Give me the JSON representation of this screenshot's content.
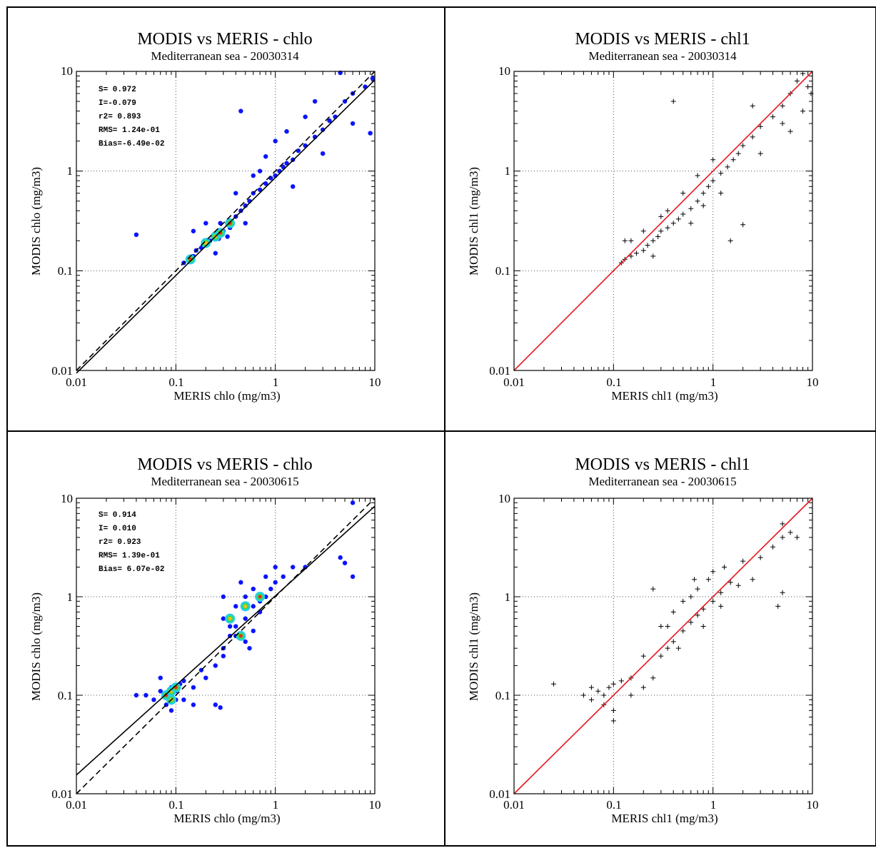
{
  "chart_data": [
    {
      "type": "scatter",
      "style": "density",
      "title": "MODIS vs MERIS - chlo",
      "subtitle": "Mediterranean sea - 20030314",
      "xlabel": "MERIS chlo (mg/m3)",
      "ylabel": "MODIS chlo (mg/m3)",
      "xscale": "log",
      "yscale": "log",
      "xlim": [
        0.01,
        10
      ],
      "ylim": [
        0.01,
        10
      ],
      "xticks": [
        "0.01",
        "0.1",
        "1",
        "10"
      ],
      "yticks": [
        "0.01",
        "0.1",
        "1",
        "10"
      ],
      "grid": true,
      "stats": [
        "S= 0.972",
        "I=-0.079",
        "r2= 0.893",
        "RMS= 1.24e-01",
        "Bias=-6.49e-02"
      ],
      "lines": [
        {
          "kind": "one-to-one",
          "style": "dashed",
          "color": "#000000",
          "x": [
            0.01,
            10
          ],
          "y": [
            0.01,
            10
          ]
        },
        {
          "kind": "regression",
          "style": "solid",
          "color": "#000000",
          "x": [
            0.01,
            10
          ],
          "y": [
            0.0094,
            8.2
          ]
        }
      ],
      "points": [
        [
          0.04,
          0.23
        ],
        [
          0.12,
          0.12
        ],
        [
          0.14,
          0.13
        ],
        [
          0.15,
          0.14
        ],
        [
          0.16,
          0.16
        ],
        [
          0.18,
          0.17
        ],
        [
          0.2,
          0.18
        ],
        [
          0.22,
          0.2
        ],
        [
          0.25,
          0.22
        ],
        [
          0.27,
          0.21
        ],
        [
          0.3,
          0.25
        ],
        [
          0.28,
          0.3
        ],
        [
          0.33,
          0.3
        ],
        [
          0.35,
          0.27
        ],
        [
          0.4,
          0.35
        ],
        [
          0.45,
          0.4
        ],
        [
          0.5,
          0.45
        ],
        [
          0.55,
          0.5
        ],
        [
          0.6,
          0.6
        ],
        [
          0.7,
          0.65
        ],
        [
          0.8,
          0.75
        ],
        [
          0.9,
          0.85
        ],
        [
          1.0,
          0.9
        ],
        [
          1.1,
          1.0
        ],
        [
          1.2,
          1.1
        ],
        [
          1.3,
          1.2
        ],
        [
          1.5,
          1.3
        ],
        [
          1.7,
          1.6
        ],
        [
          2.0,
          1.8
        ],
        [
          2.5,
          2.2
        ],
        [
          3.0,
          2.6
        ],
        [
          3.5,
          3.2
        ],
        [
          4.0,
          3.5
        ],
        [
          5.0,
          5.0
        ],
        [
          6.0,
          6.0
        ],
        [
          8.0,
          7.0
        ],
        [
          9.5,
          8.5
        ],
        [
          4.5,
          10.0
        ],
        [
          0.2,
          0.3
        ],
        [
          0.25,
          0.15
        ],
        [
          0.4,
          0.6
        ],
        [
          0.5,
          0.3
        ],
        [
          0.7,
          1.0
        ],
        [
          1.0,
          2.0
        ],
        [
          0.45,
          4.0
        ],
        [
          1.5,
          0.7
        ],
        [
          2.0,
          3.5
        ],
        [
          3.0,
          1.5
        ],
        [
          0.15,
          0.25
        ],
        [
          0.6,
          0.9
        ],
        [
          1.3,
          2.5
        ],
        [
          0.33,
          0.22
        ],
        [
          6.0,
          3.0
        ],
        [
          9.0,
          2.4
        ],
        [
          2.5,
          5.0
        ],
        [
          0.8,
          1.4
        ]
      ],
      "hotspots": [
        [
          0.14,
          0.13
        ],
        [
          0.25,
          0.22
        ],
        [
          0.28,
          0.24
        ],
        [
          0.2,
          0.19
        ],
        [
          0.35,
          0.3
        ]
      ]
    },
    {
      "type": "scatter",
      "style": "cross",
      "title": "MODIS vs MERIS - chl1",
      "subtitle": "Mediterranean sea - 20030314",
      "xlabel": "MERIS chl1 (mg/m3)",
      "ylabel": "MODIS chl1 (mg/m3)",
      "xscale": "log",
      "yscale": "log",
      "xlim": [
        0.01,
        10
      ],
      "ylim": [
        0.01,
        10
      ],
      "xticks": [
        "0.01",
        "0.1",
        "1",
        "10"
      ],
      "yticks": [
        "0.01",
        "0.1",
        "1",
        "10"
      ],
      "grid": true,
      "stats": [],
      "lines": [
        {
          "kind": "one-to-one",
          "style": "solid",
          "color": "#e8141c",
          "x": [
            0.01,
            10
          ],
          "y": [
            0.01,
            10
          ]
        }
      ],
      "points": [
        [
          0.12,
          0.12
        ],
        [
          0.13,
          0.13
        ],
        [
          0.15,
          0.14
        ],
        [
          0.17,
          0.15
        ],
        [
          0.2,
          0.16
        ],
        [
          0.22,
          0.18
        ],
        [
          0.25,
          0.2
        ],
        [
          0.28,
          0.22
        ],
        [
          0.3,
          0.25
        ],
        [
          0.35,
          0.27
        ],
        [
          0.4,
          0.3
        ],
        [
          0.45,
          0.33
        ],
        [
          0.5,
          0.37
        ],
        [
          0.6,
          0.42
        ],
        [
          0.7,
          0.5
        ],
        [
          0.8,
          0.6
        ],
        [
          0.9,
          0.7
        ],
        [
          1.0,
          0.8
        ],
        [
          1.2,
          0.95
        ],
        [
          1.4,
          1.1
        ],
        [
          1.6,
          1.3
        ],
        [
          1.8,
          1.5
        ],
        [
          2.0,
          1.8
        ],
        [
          2.5,
          2.2
        ],
        [
          3.0,
          2.8
        ],
        [
          4.0,
          3.5
        ],
        [
          5.0,
          4.5
        ],
        [
          6.0,
          6.0
        ],
        [
          7.0,
          8.0
        ],
        [
          8.0,
          9.5
        ],
        [
          9.0,
          7.0
        ],
        [
          10.0,
          6.0
        ],
        [
          0.15,
          0.2
        ],
        [
          0.2,
          0.25
        ],
        [
          0.3,
          0.35
        ],
        [
          0.5,
          0.6
        ],
        [
          0.7,
          0.9
        ],
        [
          1.0,
          1.3
        ],
        [
          2.0,
          0.29
        ],
        [
          1.5,
          0.2
        ],
        [
          0.4,
          5.0
        ],
        [
          3.0,
          1.5
        ],
        [
          5.0,
          3.0
        ],
        [
          8.0,
          4.0
        ],
        [
          0.25,
          0.14
        ],
        [
          0.6,
          0.3
        ],
        [
          1.2,
          0.6
        ],
        [
          0.8,
          0.45
        ],
        [
          0.35,
          0.4
        ],
        [
          0.13,
          0.2
        ],
        [
          2.5,
          4.5
        ],
        [
          6.0,
          2.5
        ]
      ],
      "hotspots": []
    },
    {
      "type": "scatter",
      "style": "density",
      "title": "MODIS vs MERIS - chlo",
      "subtitle": "Mediterranean sea - 20030615",
      "xlabel": "MERIS chlo (mg/m3)",
      "ylabel": "MODIS chlo (mg/m3)",
      "xscale": "log",
      "yscale": "log",
      "xlim": [
        0.01,
        10
      ],
      "ylim": [
        0.01,
        10
      ],
      "xticks": [
        "0.01",
        "0.1",
        "1",
        "10"
      ],
      "yticks": [
        "0.01",
        "0.1",
        "1",
        "10"
      ],
      "grid": true,
      "stats": [
        "S= 0.914",
        "I= 0.010",
        "r2= 0.923",
        "RMS= 1.39e-01",
        "Bias= 6.07e-02"
      ],
      "lines": [
        {
          "kind": "one-to-one",
          "style": "dashed",
          "color": "#000000",
          "x": [
            0.01,
            10
          ],
          "y": [
            0.01,
            10
          ]
        },
        {
          "kind": "regression",
          "style": "solid",
          "color": "#000000",
          "x": [
            0.01,
            10
          ],
          "y": [
            0.0155,
            8.3
          ]
        }
      ],
      "points": [
        [
          0.05,
          0.1
        ],
        [
          0.06,
          0.09
        ],
        [
          0.07,
          0.11
        ],
        [
          0.08,
          0.1
        ],
        [
          0.09,
          0.12
        ],
        [
          0.1,
          0.11
        ],
        [
          0.11,
          0.13
        ],
        [
          0.12,
          0.14
        ],
        [
          0.08,
          0.08
        ],
        [
          0.09,
          0.07
        ],
        [
          0.1,
          0.09
        ],
        [
          0.15,
          0.12
        ],
        [
          0.2,
          0.15
        ],
        [
          0.25,
          0.2
        ],
        [
          0.3,
          0.3
        ],
        [
          0.35,
          0.4
        ],
        [
          0.4,
          0.5
        ],
        [
          0.5,
          0.6
        ],
        [
          0.6,
          0.8
        ],
        [
          0.7,
          0.9
        ],
        [
          0.8,
          1.0
        ],
        [
          0.9,
          1.2
        ],
        [
          1.0,
          1.4
        ],
        [
          1.2,
          1.6
        ],
        [
          1.5,
          2.0
        ],
        [
          0.3,
          0.6
        ],
        [
          0.4,
          0.8
        ],
        [
          0.5,
          1.0
        ],
        [
          0.6,
          1.2
        ],
        [
          0.4,
          0.4
        ],
        [
          0.5,
          0.35
        ],
        [
          0.6,
          0.45
        ],
        [
          0.3,
          0.25
        ],
        [
          4.5,
          2.5
        ],
        [
          5.0,
          2.2
        ],
        [
          6.0,
          1.6
        ],
        [
          6.0,
          9.0
        ],
        [
          0.25,
          0.08
        ],
        [
          0.28,
          0.075
        ],
        [
          0.18,
          0.18
        ],
        [
          0.35,
          0.5
        ],
        [
          0.7,
          0.7
        ],
        [
          1.0,
          2.0
        ],
        [
          0.8,
          1.6
        ],
        [
          0.45,
          1.4
        ],
        [
          0.55,
          0.3
        ],
        [
          0.07,
          0.15
        ],
        [
          0.12,
          0.09
        ],
        [
          2.0,
          2.0
        ],
        [
          0.04,
          0.1
        ],
        [
          0.15,
          0.08
        ],
        [
          0.3,
          1.0
        ]
      ],
      "hotspots": [
        [
          0.08,
          0.1
        ],
        [
          0.09,
          0.11
        ],
        [
          0.1,
          0.12
        ],
        [
          0.09,
          0.09
        ],
        [
          0.45,
          0.4
        ],
        [
          0.35,
          0.6
        ],
        [
          0.7,
          1.0
        ],
        [
          0.5,
          0.8
        ]
      ]
    },
    {
      "type": "scatter",
      "style": "cross",
      "title": "MODIS vs MERIS - chl1",
      "subtitle": "Mediterranean sea - 20030615",
      "xlabel": "MERIS chl1 (mg/m3)",
      "ylabel": "MODIS chl1 (mg/m3)",
      "xscale": "log",
      "yscale": "log",
      "xlim": [
        0.01,
        10
      ],
      "ylim": [
        0.01,
        10
      ],
      "xticks": [
        "0.01",
        "0.1",
        "1",
        "10"
      ],
      "yticks": [
        "0.01",
        "0.1",
        "1",
        "10"
      ],
      "grid": true,
      "stats": [],
      "lines": [
        {
          "kind": "one-to-one",
          "style": "solid",
          "color": "#e8141c",
          "x": [
            0.01,
            10
          ],
          "y": [
            0.01,
            10
          ]
        }
      ],
      "points": [
        [
          0.025,
          0.13
        ],
        [
          0.05,
          0.1
        ],
        [
          0.06,
          0.09
        ],
        [
          0.07,
          0.11
        ],
        [
          0.08,
          0.1
        ],
        [
          0.09,
          0.12
        ],
        [
          0.1,
          0.13
        ],
        [
          0.12,
          0.14
        ],
        [
          0.08,
          0.08
        ],
        [
          0.1,
          0.07
        ],
        [
          0.1,
          0.055
        ],
        [
          0.15,
          0.1
        ],
        [
          0.2,
          0.12
        ],
        [
          0.25,
          0.15
        ],
        [
          0.3,
          0.25
        ],
        [
          0.35,
          0.3
        ],
        [
          0.4,
          0.35
        ],
        [
          0.5,
          0.45
        ],
        [
          0.6,
          0.55
        ],
        [
          0.7,
          0.65
        ],
        [
          0.8,
          0.75
        ],
        [
          1.0,
          0.9
        ],
        [
          1.2,
          1.1
        ],
        [
          1.5,
          1.4
        ],
        [
          0.3,
          0.5
        ],
        [
          0.4,
          0.7
        ],
        [
          0.5,
          0.9
        ],
        [
          0.7,
          1.2
        ],
        [
          0.9,
          1.5
        ],
        [
          1.0,
          1.8
        ],
        [
          1.3,
          2.0
        ],
        [
          2.0,
          2.3
        ],
        [
          3.0,
          2.5
        ],
        [
          4.0,
          3.2
        ],
        [
          5.0,
          4.0
        ],
        [
          5.0,
          5.5
        ],
        [
          6.0,
          4.5
        ],
        [
          7.0,
          4.0
        ],
        [
          4.5,
          0.8
        ],
        [
          5.0,
          1.1
        ],
        [
          0.2,
          0.25
        ],
        [
          0.6,
          1.0
        ],
        [
          0.8,
          0.5
        ],
        [
          1.2,
          0.8
        ],
        [
          2.5,
          1.5
        ],
        [
          0.15,
          0.15
        ],
        [
          0.35,
          0.5
        ],
        [
          0.45,
          0.3
        ],
        [
          0.06,
          0.12
        ],
        [
          1.8,
          1.3
        ],
        [
          0.25,
          1.2
        ],
        [
          0.65,
          1.5
        ]
      ],
      "hotspots": []
    }
  ]
}
